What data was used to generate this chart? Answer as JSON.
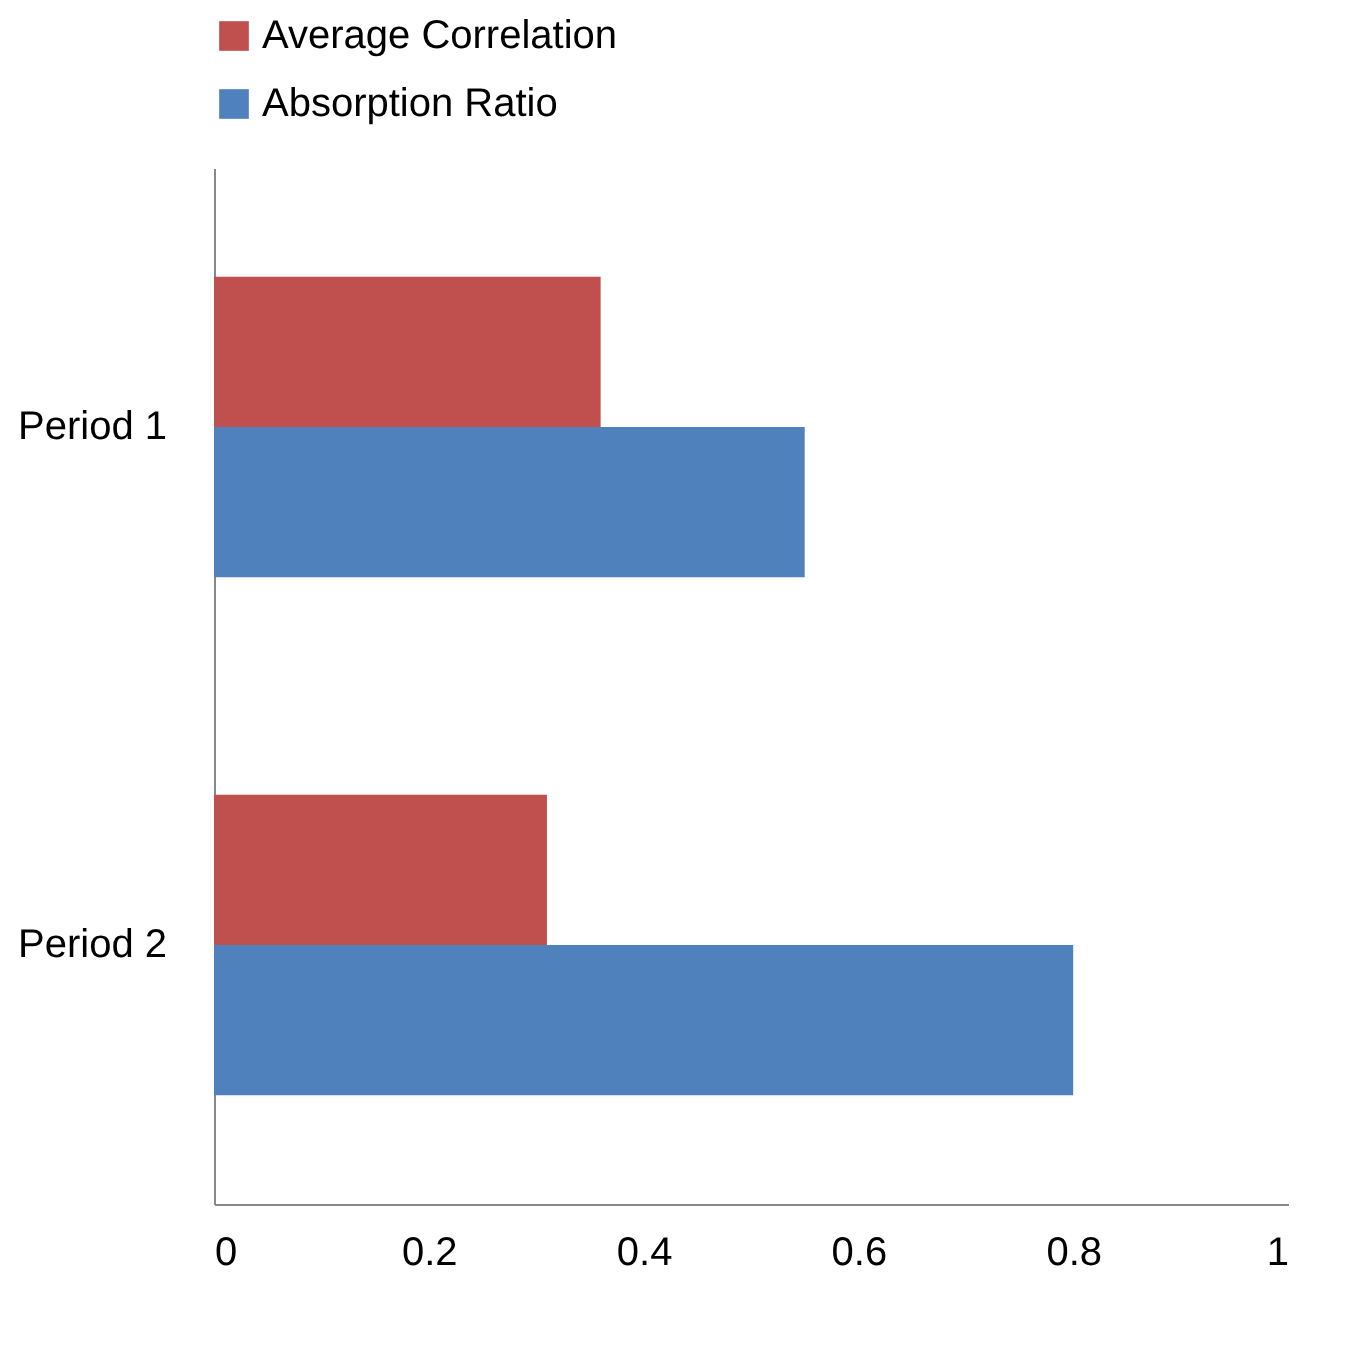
{
  "chart_data": {
    "type": "bar",
    "orientation": "horizontal",
    "categories": [
      "Period 1",
      "Period 2"
    ],
    "series": [
      {
        "name": "Average Correlation",
        "color": "#c0504d",
        "values": [
          0.36,
          0.31
        ]
      },
      {
        "name": "Absorption Ratio",
        "color": "#4f81bd",
        "values": [
          0.55,
          0.8
        ]
      }
    ],
    "xlim": [
      0,
      1
    ],
    "xticks": [
      0,
      0.2,
      0.4,
      0.6,
      0.8,
      1
    ],
    "grid": false,
    "legend": "top"
  }
}
